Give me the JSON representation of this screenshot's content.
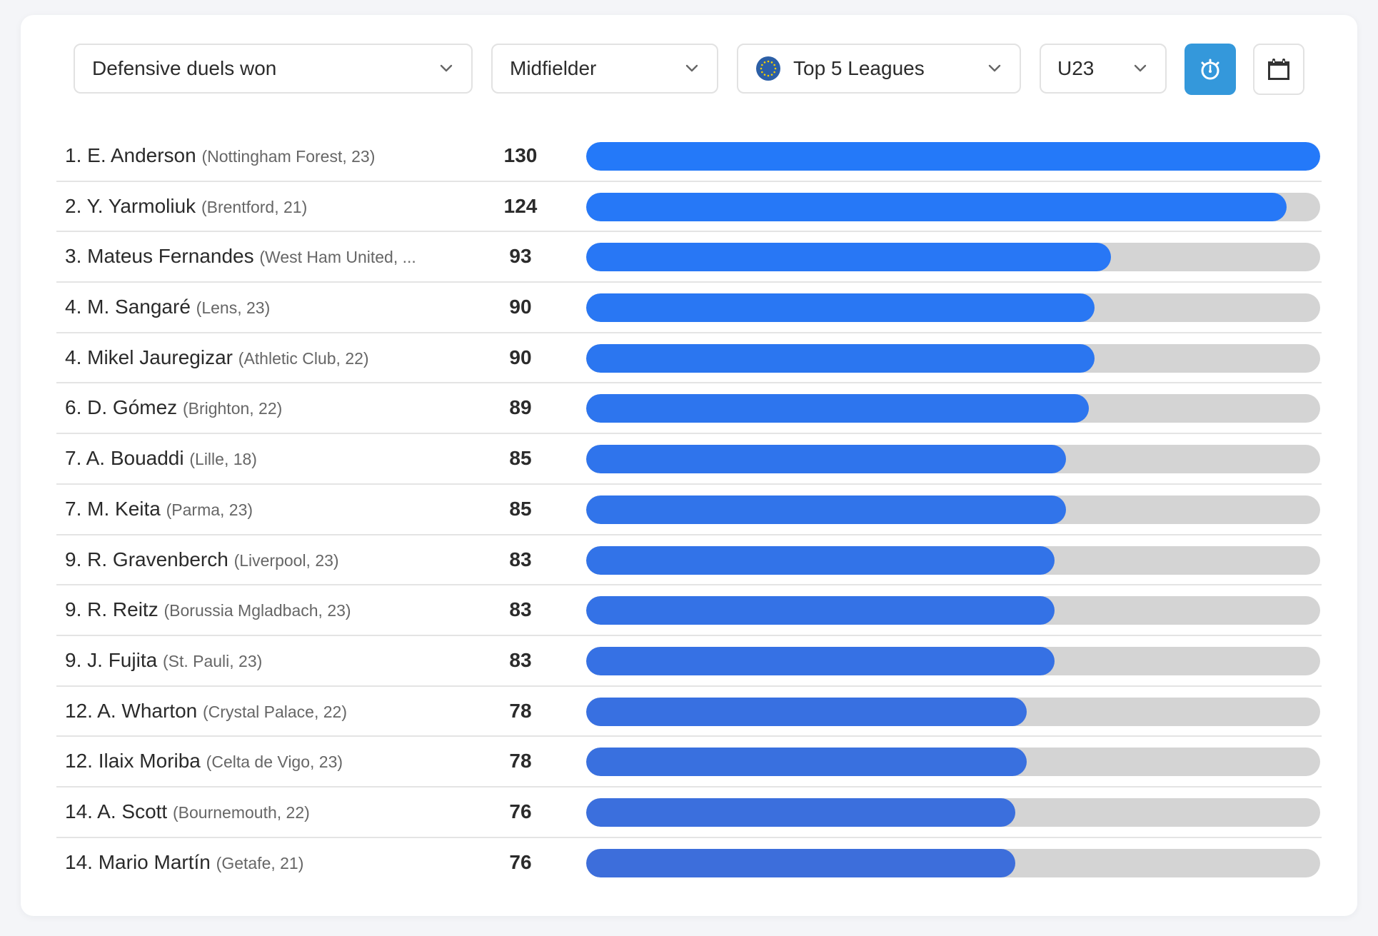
{
  "filters": {
    "metric": "Defensive duels won",
    "position": "Midfielder",
    "league": "Top 5 Leagues",
    "age": "U23"
  },
  "icons": {
    "league": "eu-flag-icon",
    "timer_button": "stopwatch-icon",
    "calendar_button": "calendar-icon",
    "chevron": "chevron-down-icon"
  },
  "colors": {
    "accent_button": "#3498db",
    "bar_top": "#2479f9",
    "bar_bottom": "#3d6edb",
    "bar_track": "#d4d4d4"
  },
  "chart_data": {
    "type": "bar",
    "orientation": "horizontal",
    "title": "Defensive duels won",
    "max_value": 130,
    "rows": [
      {
        "rank": "1.",
        "player": "E. Anderson",
        "club": "(Nottingham Forest, 23)",
        "value": 130
      },
      {
        "rank": "2.",
        "player": "Y. Yarmoliuk",
        "club": "(Brentford, 21)",
        "value": 124
      },
      {
        "rank": "3.",
        "player": "Mateus Fernandes",
        "club": "(West Ham United, ...",
        "value": 93
      },
      {
        "rank": "4.",
        "player": "M. Sangaré",
        "club": "(Lens, 23)",
        "value": 90
      },
      {
        "rank": "4.",
        "player": "Mikel Jauregizar",
        "club": "(Athletic Club, 22)",
        "value": 90
      },
      {
        "rank": "6.",
        "player": "D. Gómez",
        "club": "(Brighton, 22)",
        "value": 89
      },
      {
        "rank": "7.",
        "player": "A. Bouaddi",
        "club": "(Lille, 18)",
        "value": 85
      },
      {
        "rank": "7.",
        "player": "M. Keita",
        "club": "(Parma, 23)",
        "value": 85
      },
      {
        "rank": "9.",
        "player": "R. Gravenberch",
        "club": "(Liverpool, 23)",
        "value": 83
      },
      {
        "rank": "9.",
        "player": "R. Reitz",
        "club": "(Borussia Mgladbach, 23)",
        "value": 83
      },
      {
        "rank": "9.",
        "player": "J. Fujita",
        "club": "(St. Pauli, 23)",
        "value": 83
      },
      {
        "rank": "12.",
        "player": "A. Wharton",
        "club": "(Crystal Palace, 22)",
        "value": 78
      },
      {
        "rank": "12.",
        "player": "Ilaix Moriba",
        "club": "(Celta de Vigo, 23)",
        "value": 78
      },
      {
        "rank": "14.",
        "player": "A. Scott",
        "club": "(Bournemouth, 22)",
        "value": 76
      },
      {
        "rank": "14.",
        "player": "Mario Martín",
        "club": "(Getafe, 21)",
        "value": 76
      }
    ]
  }
}
